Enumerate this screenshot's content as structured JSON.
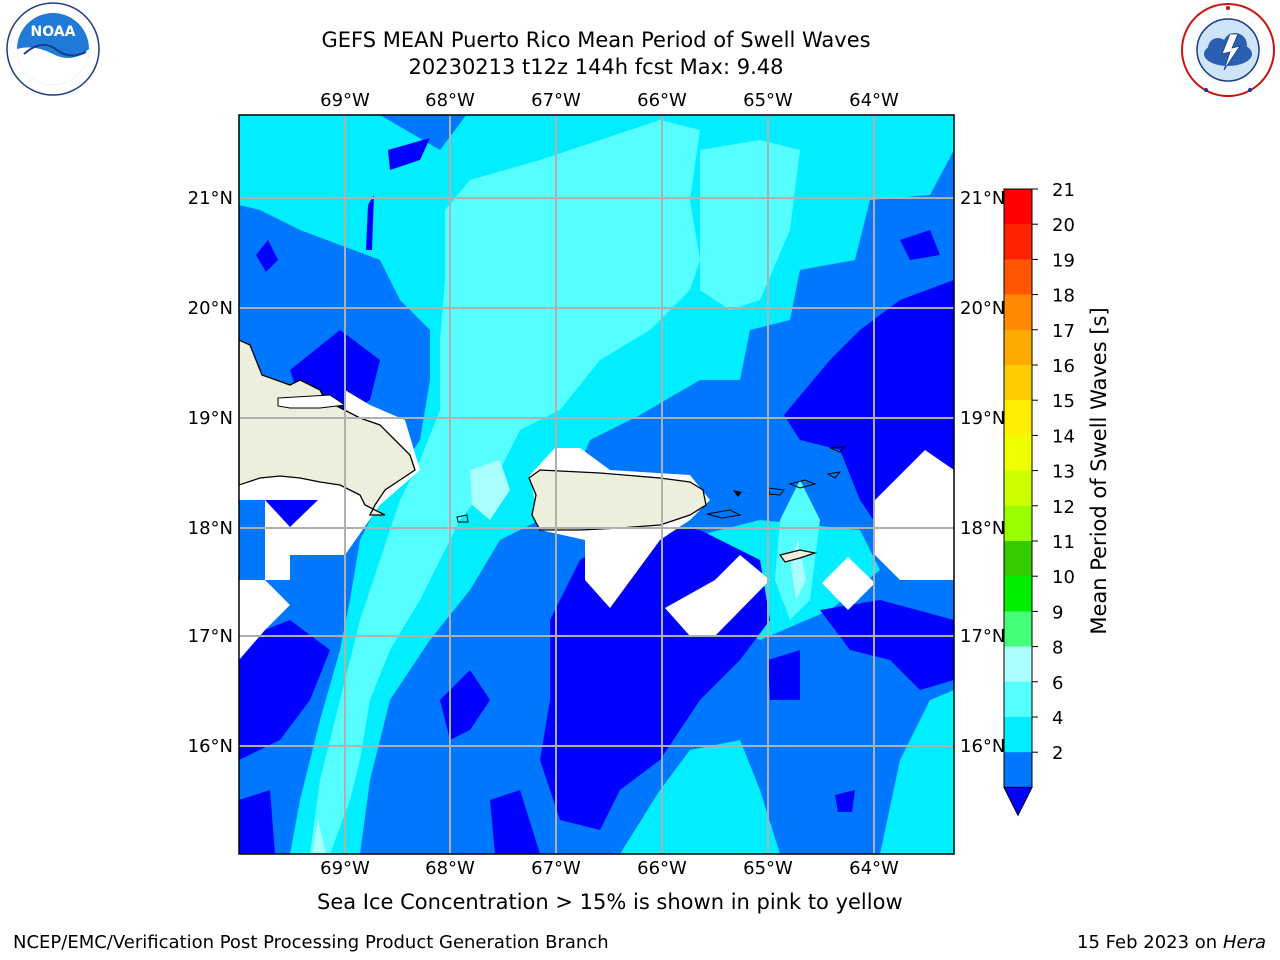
{
  "header": {
    "title_line1": "GEFS MEAN Puerto Rico Mean Period of Swell Waves",
    "title_line2": "20230213 t12z 144h fcst   Max: 9.48"
  },
  "logos": {
    "left_icon": "noaa-logo-icon",
    "left_text": "NOAA",
    "left_ring_text": "NATIONAL OCEANIC AND ATMOSPHERIC ADMINISTRATION · U.S. DEPARTMENT OF COMMERCE",
    "right_icon": "nws-logo-icon",
    "right_ring_text": "NATIONAL WEATHER SERVICE"
  },
  "map": {
    "lon_labels": [
      "69°W",
      "68°W",
      "67°W",
      "66°W",
      "65°W",
      "64°W"
    ],
    "lat_labels": [
      "21°N",
      "20°N",
      "19°N",
      "18°N",
      "17°N",
      "16°N"
    ],
    "ocean_color": "#0077ff",
    "land_color": "#eeeedd"
  },
  "colorbar": {
    "label": "Mean Period of Swell Waves [s]",
    "ticks": [
      "21",
      "20",
      "19",
      "18",
      "17",
      "16",
      "15",
      "14",
      "13",
      "12",
      "11",
      "10",
      "9",
      "8",
      "6",
      "4",
      "2"
    ],
    "colors": [
      "#ff0000",
      "#ff2200",
      "#ff5500",
      "#ff8800",
      "#ffaa00",
      "#ffcc00",
      "#ffee00",
      "#eeff00",
      "#ccff00",
      "#99ff00",
      "#33cc00",
      "#00ee00",
      "#44ff77",
      "#aaffff",
      "#55ffff",
      "#00eeff",
      "#0077ff"
    ]
  },
  "note": "Sea Ice Concentration > 15% is shown in pink to yellow",
  "footer": {
    "left": "NCEP/EMC/Verification Post Processing Product Generation Branch",
    "right_date": "15 Feb 2023 on",
    "right_host": "Hera"
  }
}
